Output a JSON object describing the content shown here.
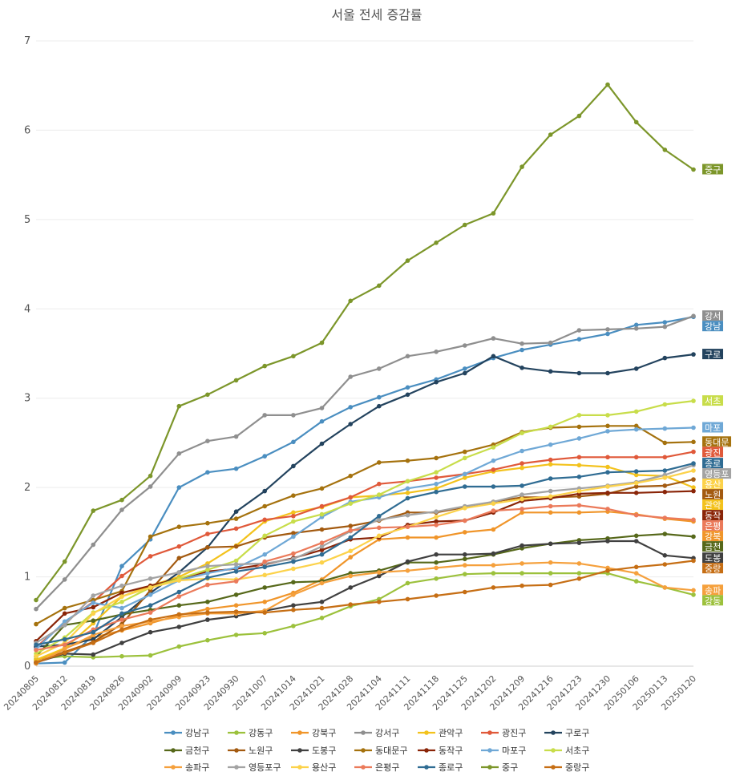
{
  "chart_data": {
    "type": "line",
    "title": "서울 전세 증감률",
    "xlabel": "",
    "ylabel": "",
    "ylim": [
      0,
      7
    ],
    "yticks": [
      0,
      1,
      2,
      3,
      4,
      5,
      6,
      7
    ],
    "grid": true,
    "legend_position": "bottom",
    "x": [
      "20240805",
      "20240812",
      "20240819",
      "20240826",
      "20240902",
      "20240909",
      "20240923",
      "20240930",
      "20241007",
      "20241014",
      "20241021",
      "20241028",
      "20241104",
      "20241111",
      "20241118",
      "20241125",
      "20241202",
      "20241209",
      "20241216",
      "20241223",
      "20241230",
      "20250106",
      "20250113",
      "20250120"
    ],
    "series": [
      {
        "name": "강남구",
        "tag": "강남",
        "color": "#4a8ec0",
        "values": [
          0.03,
          0.04,
          0.35,
          1.12,
          1.42,
          2.0,
          2.17,
          2.21,
          2.35,
          2.51,
          2.74,
          2.9,
          3.01,
          3.12,
          3.21,
          3.33,
          3.45,
          3.54,
          3.6,
          3.66,
          3.72,
          3.82,
          3.85,
          3.91
        ]
      },
      {
        "name": "강동구",
        "tag": "강동",
        "color": "#9cc13c",
        "values": [
          0.08,
          0.11,
          0.1,
          0.11,
          0.12,
          0.22,
          0.29,
          0.35,
          0.37,
          0.45,
          0.54,
          0.67,
          0.75,
          0.93,
          0.98,
          1.03,
          1.04,
          1.04,
          1.04,
          1.04,
          1.04,
          0.95,
          0.88,
          0.8
        ]
      },
      {
        "name": "강북구",
        "tag": "강북",
        "color": "#f0952a",
        "values": [
          0.06,
          0.2,
          0.32,
          0.4,
          0.48,
          0.57,
          0.64,
          0.68,
          0.72,
          0.82,
          0.97,
          1.22,
          1.42,
          1.44,
          1.44,
          1.5,
          1.53,
          1.72,
          1.72,
          1.72,
          1.73,
          1.7,
          1.65,
          1.62
        ]
      },
      {
        "name": "강서구",
        "tag": "강서",
        "color": "#8f8f8f",
        "values": [
          0.64,
          0.97,
          1.36,
          1.75,
          2.01,
          2.38,
          2.52,
          2.57,
          2.81,
          2.81,
          2.89,
          3.24,
          3.33,
          3.47,
          3.52,
          3.59,
          3.67,
          3.61,
          3.62,
          3.76,
          3.77,
          3.78,
          3.8,
          3.92
        ]
      },
      {
        "name": "관악구",
        "tag": "관악",
        "color": "#f3c21c",
        "values": [
          0.07,
          0.2,
          0.48,
          0.78,
          0.9,
          1.0,
          1.15,
          1.35,
          1.62,
          1.72,
          1.78,
          1.89,
          1.91,
          1.94,
          1.99,
          2.11,
          2.18,
          2.22,
          2.26,
          2.25,
          2.23,
          2.14,
          2.13,
          2.0
        ]
      },
      {
        "name": "광진구",
        "tag": "광진",
        "color": "#e0593a",
        "values": [
          0.21,
          0.49,
          0.72,
          1.01,
          1.23,
          1.34,
          1.48,
          1.54,
          1.64,
          1.68,
          1.79,
          1.89,
          2.04,
          2.07,
          2.11,
          2.15,
          2.2,
          2.27,
          2.31,
          2.34,
          2.34,
          2.34,
          2.34,
          2.4
        ]
      },
      {
        "name": "구로구",
        "tag": "구로",
        "color": "#23435e",
        "values": [
          0.22,
          0.24,
          0.3,
          0.55,
          0.82,
          1.05,
          1.33,
          1.73,
          1.96,
          2.24,
          2.49,
          2.71,
          2.91,
          3.04,
          3.18,
          3.28,
          3.47,
          3.34,
          3.3,
          3.28,
          3.28,
          3.33,
          3.45,
          3.49
        ]
      },
      {
        "name": "금천구",
        "tag": "금천",
        "color": "#56681a",
        "values": [
          0.11,
          0.46,
          0.51,
          0.58,
          0.63,
          0.68,
          0.72,
          0.8,
          0.88,
          0.94,
          0.95,
          1.04,
          1.07,
          1.16,
          1.16,
          1.2,
          1.25,
          1.32,
          1.37,
          1.41,
          1.43,
          1.46,
          1.48,
          1.45
        ]
      },
      {
        "name": "노원구",
        "tag": "노원",
        "color": "#a35a10",
        "values": [
          0.04,
          0.16,
          0.27,
          0.47,
          0.85,
          1.21,
          1.33,
          1.34,
          1.44,
          1.49,
          1.53,
          1.57,
          1.63,
          1.72,
          1.72,
          1.78,
          1.84,
          1.89,
          1.89,
          1.9,
          1.93,
          2.01,
          2.02,
          2.09
        ]
      },
      {
        "name": "도봉구",
        "tag": "도봉",
        "color": "#404040",
        "values": [
          0.04,
          0.14,
          0.13,
          0.26,
          0.38,
          0.44,
          0.52,
          0.56,
          0.62,
          0.68,
          0.72,
          0.88,
          1.01,
          1.17,
          1.25,
          1.25,
          1.26,
          1.35,
          1.37,
          1.38,
          1.4,
          1.4,
          1.24,
          1.21
        ]
      },
      {
        "name": "동대문구",
        "tag": "동대문",
        "color": "#a5720e",
        "values": [
          0.47,
          0.65,
          0.74,
          0.84,
          1.45,
          1.56,
          1.6,
          1.65,
          1.79,
          1.91,
          1.99,
          2.13,
          2.28,
          2.3,
          2.33,
          2.4,
          2.48,
          2.62,
          2.67,
          2.68,
          2.69,
          2.69,
          2.5,
          2.51
        ]
      },
      {
        "name": "동작구",
        "tag": "동작",
        "color": "#8a2508",
        "values": [
          0.28,
          0.59,
          0.66,
          0.82,
          0.9,
          0.98,
          1.06,
          1.09,
          1.14,
          1.21,
          1.3,
          1.42,
          1.44,
          1.58,
          1.62,
          1.63,
          1.72,
          1.85,
          1.88,
          1.93,
          1.94,
          1.94,
          1.95,
          1.96
        ]
      },
      {
        "name": "마포구",
        "tag": "마포",
        "color": "#6fa8d6",
        "values": [
          0.19,
          0.5,
          0.71,
          0.65,
          0.8,
          0.96,
          1.04,
          1.1,
          1.25,
          1.45,
          1.67,
          1.84,
          1.89,
          1.99,
          2.04,
          2.15,
          2.3,
          2.41,
          2.48,
          2.55,
          2.63,
          2.65,
          2.66,
          2.67
        ]
      },
      {
        "name": "서초구",
        "tag": "서초",
        "color": "#c8dd4a",
        "values": [
          0.14,
          0.32,
          0.6,
          0.72,
          0.88,
          0.98,
          1.08,
          1.18,
          1.46,
          1.62,
          1.7,
          1.82,
          1.92,
          2.07,
          2.17,
          2.33,
          2.45,
          2.61,
          2.68,
          2.81,
          2.81,
          2.85,
          2.93,
          2.97
        ]
      },
      {
        "name": "송파구",
        "tag": "송파",
        "color": "#f5a03c",
        "values": [
          0.03,
          0.19,
          0.35,
          0.45,
          0.5,
          0.55,
          0.59,
          0.59,
          0.62,
          0.8,
          0.93,
          1.01,
          1.05,
          1.07,
          1.1,
          1.13,
          1.13,
          1.15,
          1.16,
          1.15,
          1.1,
          1.04,
          0.88,
          0.85
        ]
      },
      {
        "name": "영등포구",
        "tag": "영등포",
        "color": "#a3a3a3",
        "values": [
          0.26,
          0.46,
          0.79,
          0.9,
          0.98,
          1.05,
          1.12,
          1.14,
          1.15,
          1.2,
          1.34,
          1.51,
          1.64,
          1.69,
          1.73,
          1.79,
          1.84,
          1.92,
          1.96,
          1.99,
          2.02,
          2.06,
          2.14,
          2.25
        ]
      },
      {
        "name": "용산구",
        "tag": "용산",
        "color": "#fcd24a",
        "values": [
          0.11,
          0.26,
          0.59,
          0.78,
          0.88,
          0.96,
          0.98,
          0.97,
          1.02,
          1.09,
          1.16,
          1.29,
          1.46,
          1.56,
          1.67,
          1.77,
          1.82,
          1.87,
          1.9,
          1.96,
          2.01,
          2.05,
          2.11,
          2.19
        ]
      },
      {
        "name": "은평구",
        "tag": "은평",
        "color": "#eb7a5a",
        "values": [
          0.18,
          0.24,
          0.41,
          0.52,
          0.6,
          0.78,
          0.91,
          0.95,
          1.17,
          1.26,
          1.38,
          1.52,
          1.55,
          1.56,
          1.58,
          1.63,
          1.74,
          1.76,
          1.79,
          1.8,
          1.76,
          1.69,
          1.66,
          1.64
        ]
      },
      {
        "name": "종로구",
        "tag": "종로",
        "color": "#2f6c93",
        "values": [
          0.24,
          0.3,
          0.38,
          0.59,
          0.68,
          0.83,
          0.99,
          1.06,
          1.11,
          1.17,
          1.25,
          1.44,
          1.68,
          1.88,
          1.95,
          2.01,
          2.01,
          2.02,
          2.1,
          2.12,
          2.17,
          2.18,
          2.19,
          2.27
        ]
      },
      {
        "name": "중구",
        "tag": "중구",
        "color": "#7c962a",
        "values": [
          0.74,
          1.17,
          1.74,
          1.86,
          2.13,
          2.91,
          3.04,
          3.2,
          3.36,
          3.47,
          3.62,
          4.09,
          4.26,
          4.54,
          4.74,
          4.94,
          5.07,
          5.59,
          5.95,
          6.16,
          6.51,
          6.09,
          5.78,
          5.56
        ]
      },
      {
        "name": "중랑구",
        "tag": "중랑",
        "color": "#c66e14",
        "values": [
          0.04,
          0.15,
          0.26,
          0.41,
          0.52,
          0.58,
          0.6,
          0.61,
          0.6,
          0.63,
          0.65,
          0.69,
          0.72,
          0.75,
          0.79,
          0.83,
          0.88,
          0.9,
          0.91,
          0.98,
          1.07,
          1.11,
          1.14,
          1.18
        ]
      }
    ],
    "end_labels": [
      {
        "series": "중구",
        "text": "중구"
      },
      {
        "series": "강서구",
        "text": "강서"
      },
      {
        "series": "강남구",
        "text": "강남"
      },
      {
        "series": "종로구",
        "text": "종로"
      },
      {
        "series": "서초구",
        "text": "서초"
      },
      {
        "series": "마포구",
        "text": "마포"
      },
      {
        "series": "동대문구",
        "text": "동대문"
      },
      {
        "series": "광진구",
        "text": "광진"
      },
      {
        "series": "구로구",
        "text": "구로"
      },
      {
        "series": "영등포구",
        "text": "영등포"
      },
      {
        "series": "용산구",
        "text": "용산"
      },
      {
        "series": "노원구",
        "text": "노원"
      },
      {
        "series": "관악구",
        "text": "관악"
      },
      {
        "series": "동작구",
        "text": "동작"
      },
      {
        "series": "강북구",
        "text": "강북"
      },
      {
        "series": "은평구",
        "text": "은평"
      },
      {
        "series": "금천구",
        "text": "금천"
      },
      {
        "series": "도봉구",
        "text": "도봉"
      },
      {
        "series": "중랑구",
        "text": "중랑"
      },
      {
        "series": "송파구",
        "text": "송파"
      },
      {
        "series": "강동구",
        "text": "강동"
      }
    ]
  }
}
